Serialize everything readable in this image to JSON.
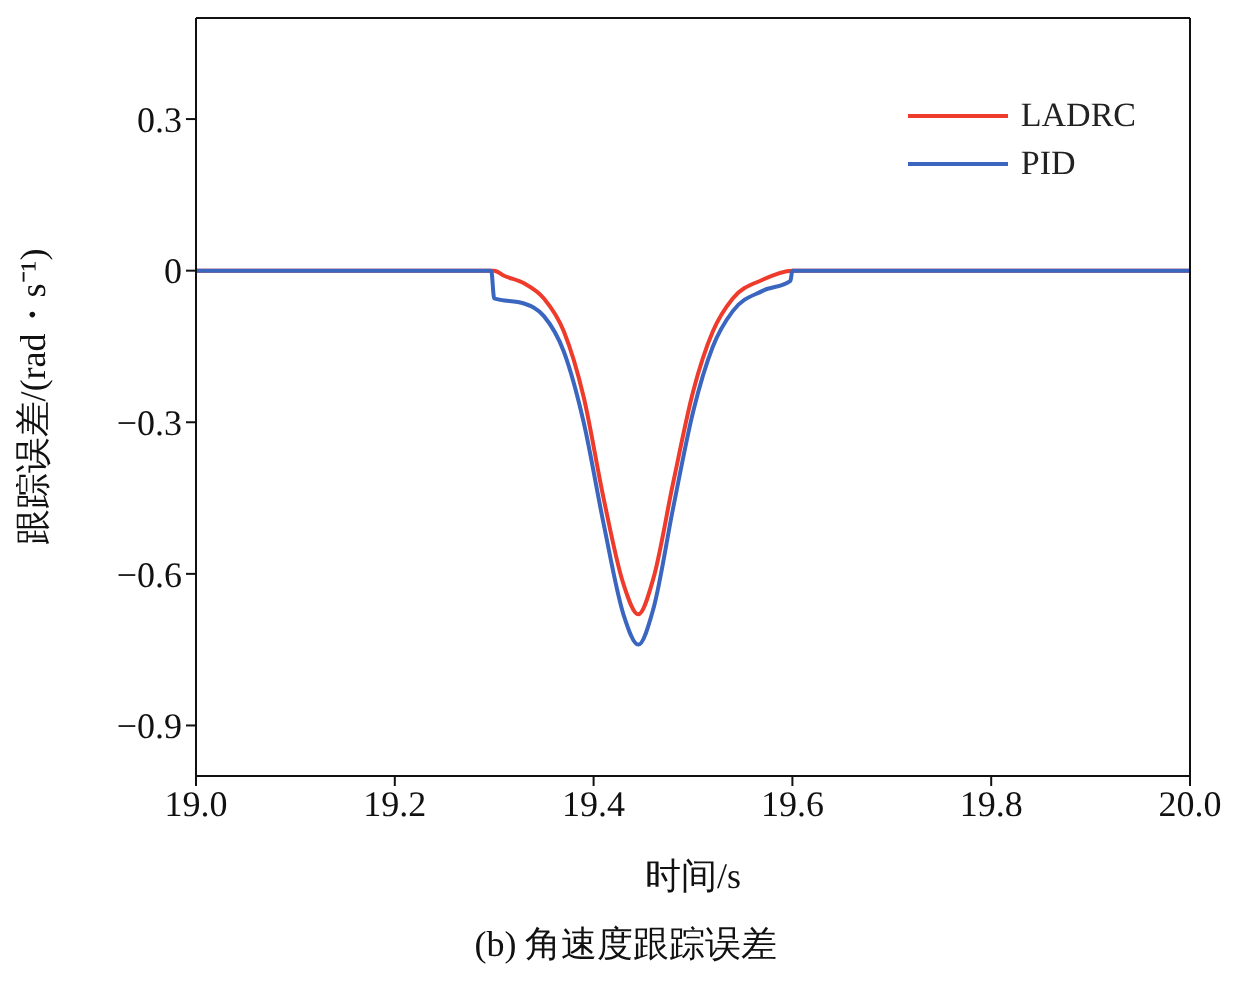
{
  "chart_data": {
    "type": "line",
    "title": "(b) 角速度跟踪误差",
    "xlabel": "时间/s",
    "ylabel": "跟踪误差/(rad・s⁻¹)",
    "xlim": [
      19.0,
      20.0
    ],
    "xticks": [
      {
        "value": 19.0,
        "label": "19.0"
      },
      {
        "value": 19.2,
        "label": "19.2"
      },
      {
        "value": 19.4,
        "label": "19.4"
      },
      {
        "value": 19.6,
        "label": "19.6"
      },
      {
        "value": 19.8,
        "label": "19.8"
      },
      {
        "value": 20.0,
        "label": "20.0"
      }
    ],
    "ylim": [
      -1.0,
      0.5
    ],
    "yticks": [
      -0.9,
      -0.6,
      -0.3,
      {
        "value": 0,
        "label": "0"
      },
      0.3
    ],
    "legend": "top right",
    "marker": "none",
    "line_style": "solid",
    "series": [
      {
        "name": "LADRC",
        "color": "#ee3b2b",
        "x": [
          19.0,
          19.3,
          19.31,
          19.33,
          19.35,
          19.37,
          19.39,
          19.41,
          19.43,
          19.445,
          19.46,
          19.48,
          19.5,
          19.52,
          19.54,
          19.57,
          19.6,
          20.0
        ],
        "values": [
          0,
          0,
          -0.01,
          -0.025,
          -0.055,
          -0.12,
          -0.25,
          -0.45,
          -0.62,
          -0.68,
          -0.61,
          -0.42,
          -0.24,
          -0.12,
          -0.055,
          -0.018,
          0,
          0
        ]
      },
      {
        "name": "PID",
        "color": "#3b66c0",
        "x": [
          19.0,
          19.297,
          19.3,
          19.33,
          19.35,
          19.37,
          19.39,
          19.41,
          19.43,
          19.445,
          19.46,
          19.48,
          19.5,
          19.52,
          19.54,
          19.57,
          19.598,
          19.6,
          20.0
        ],
        "values": [
          0,
          0,
          -0.055,
          -0.065,
          -0.09,
          -0.16,
          -0.3,
          -0.5,
          -0.68,
          -0.74,
          -0.67,
          -0.47,
          -0.28,
          -0.15,
          -0.08,
          -0.04,
          -0.02,
          0,
          0
        ]
      }
    ]
  }
}
